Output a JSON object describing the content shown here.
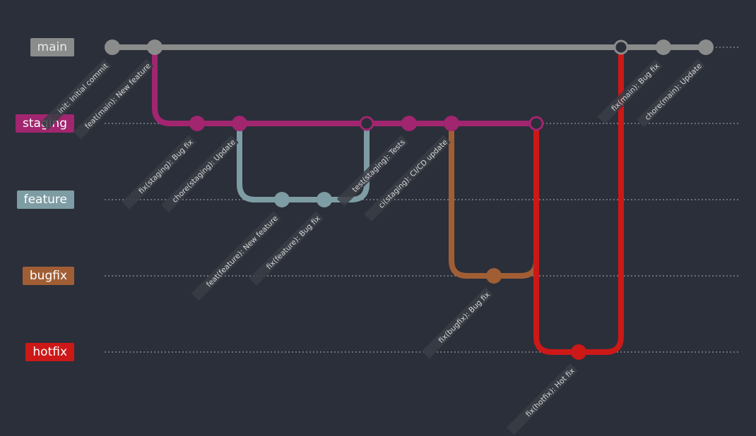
{
  "colors": {
    "background": "#2b2f3a",
    "main": "#8a8c8c",
    "staging": "#a1256f",
    "feature": "#7e9ca3",
    "bugfix": "#a15e35",
    "hotfix": "#cd1818",
    "dotted_guide": "#d0d0d0",
    "commit_text": "#d8d8d8",
    "commit_text_bg": "#3a3d45",
    "merge_fill": "#2b2f3a"
  },
  "branches": [
    {
      "id": "main",
      "label": "main",
      "color": "#8a8c8c",
      "text_color": "#e8e8e8"
    },
    {
      "id": "staging",
      "label": "staging",
      "color": "#a1256f",
      "text_color": "#ffffff"
    },
    {
      "id": "feature",
      "label": "feature",
      "color": "#7e9ca3",
      "text_color": "#ffffff"
    },
    {
      "id": "bugfix",
      "label": "bugfix",
      "color": "#a15e35",
      "text_color": "#ffffff"
    },
    {
      "id": "hotfix",
      "label": "hotfix",
      "color": "#cd1818",
      "text_color": "#ffffff"
    }
  ],
  "commits": [
    {
      "id": "c0",
      "branch": "main",
      "message": "init: Initial commit",
      "type": "normal"
    },
    {
      "id": "c1",
      "branch": "main",
      "message": "feat(main): New feature",
      "type": "normal"
    },
    {
      "id": "c2",
      "branch": "staging",
      "message": "fix(staging): Bug fix",
      "type": "normal"
    },
    {
      "id": "c3",
      "branch": "staging",
      "message": "chore(staging): Update",
      "type": "normal"
    },
    {
      "id": "c4",
      "branch": "feature",
      "message": "feat(feature): New feature",
      "type": "normal"
    },
    {
      "id": "c5",
      "branch": "feature",
      "message": "fix(feature): Bug fix",
      "type": "normal"
    },
    {
      "id": "c6",
      "branch": "staging",
      "message": "",
      "type": "merge"
    },
    {
      "id": "c7",
      "branch": "staging",
      "message": "test(staging): Tests",
      "type": "normal"
    },
    {
      "id": "c8",
      "branch": "staging",
      "message": "ci(staging): CI/CD update",
      "type": "normal"
    },
    {
      "id": "c9",
      "branch": "bugfix",
      "message": "fix(bugfix): Bug fix",
      "type": "normal"
    },
    {
      "id": "c10",
      "branch": "staging",
      "message": "",
      "type": "merge"
    },
    {
      "id": "c11",
      "branch": "hotfix",
      "message": "fix(hotfix): Hot fix",
      "type": "normal"
    },
    {
      "id": "c12",
      "branch": "main",
      "message": "",
      "type": "merge"
    },
    {
      "id": "c13",
      "branch": "main",
      "message": "fix(main): Bug fix",
      "type": "normal"
    },
    {
      "id": "c14",
      "branch": "main",
      "message": "chore(main): Update",
      "type": "normal"
    }
  ],
  "connections": [
    {
      "from": "c1",
      "to": "c2",
      "color_branch": "staging",
      "kind": "branch-out"
    },
    {
      "from": "c3",
      "to": "c4",
      "color_branch": "feature",
      "kind": "branch-out"
    },
    {
      "from": "c5",
      "to": "c6",
      "color_branch": "feature",
      "kind": "merge-in"
    },
    {
      "from": "c8",
      "to": "c9",
      "color_branch": "bugfix",
      "kind": "branch-out"
    },
    {
      "from": "c9",
      "to": "c10",
      "color_branch": "bugfix",
      "kind": "merge-in"
    },
    {
      "from": "c10",
      "to": "c11",
      "color_branch": "hotfix",
      "kind": "branch-out"
    },
    {
      "from": "c11",
      "to": "c12",
      "color_branch": "hotfix",
      "kind": "merge-in"
    }
  ]
}
